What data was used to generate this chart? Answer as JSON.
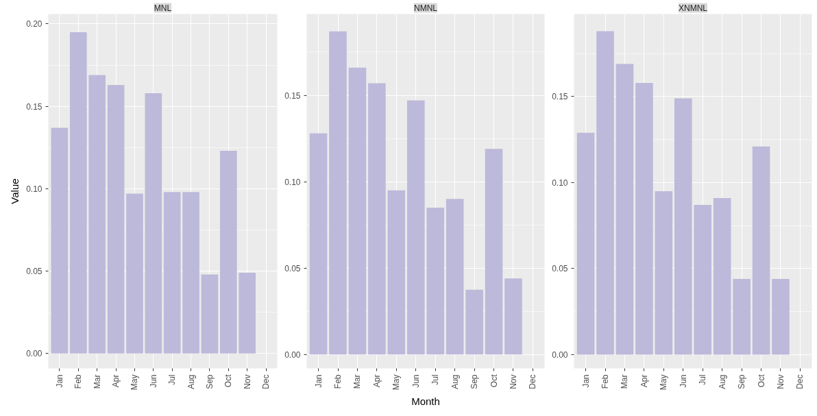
{
  "chart_data": [
    {
      "type": "bar",
      "title": "MNL",
      "ylabel": "Value",
      "categories": [
        "Jan",
        "Feb",
        "Mar",
        "Apr",
        "May",
        "Jun",
        "Jul",
        "Aug",
        "Sep",
        "Oct",
        "Nov",
        "Dec"
      ],
      "values": [
        0.137,
        0.195,
        0.169,
        0.163,
        0.097,
        0.158,
        0.098,
        0.098,
        0.048,
        0.123,
        0.049,
        null
      ],
      "color": "#bcb9da",
      "ylim": [
        -0.009,
        0.206
      ],
      "yticks": [
        {
          "value": 0,
          "label": "0.00"
        },
        {
          "value": 0.05,
          "label": "0.05"
        },
        {
          "value": 0.1,
          "label": "0.10"
        },
        {
          "value": 0.15,
          "label": "0.15"
        },
        {
          "value": 0.2,
          "label": "0.20"
        }
      ],
      "grid": true
    },
    {
      "type": "bar",
      "title": "NMNL",
      "xlabel": "Month",
      "categories": [
        "Jan",
        "Feb",
        "Mar",
        "Apr",
        "May",
        "Jun",
        "Jul",
        "Aug",
        "Sep",
        "Oct",
        "Nov",
        "Dec"
      ],
      "values": [
        0.128,
        0.187,
        0.166,
        0.157,
        0.095,
        0.147,
        0.085,
        0.09,
        0.0375,
        0.119,
        0.044,
        null
      ],
      "color": "#bcb9da",
      "ylim": [
        -0.008,
        0.197
      ],
      "yticks": [
        {
          "value": 0,
          "label": "0.00"
        },
        {
          "value": 0.05,
          "label": "0.05"
        },
        {
          "value": 0.1,
          "label": "0.10"
        },
        {
          "value": 0.15,
          "label": "0.15"
        }
      ],
      "grid": true
    },
    {
      "type": "bar",
      "title": "XNMNL",
      "categories": [
        "Jan",
        "Feb",
        "Mar",
        "Apr",
        "May",
        "Jun",
        "Jul",
        "Aug",
        "Sep",
        "Oct",
        "Nov",
        "Dec"
      ],
      "values": [
        0.129,
        0.188,
        0.169,
        0.158,
        0.095,
        0.149,
        0.087,
        0.091,
        0.044,
        0.121,
        0.044,
        null
      ],
      "color": "#bcb9da",
      "ylim": [
        -0.008,
        0.198
      ],
      "yticks": [
        {
          "value": 0,
          "label": "0.00"
        },
        {
          "value": 0.05,
          "label": "0.05"
        },
        {
          "value": 0.1,
          "label": "0.10"
        },
        {
          "value": 0.15,
          "label": "0.15"
        }
      ],
      "grid": true
    }
  ]
}
